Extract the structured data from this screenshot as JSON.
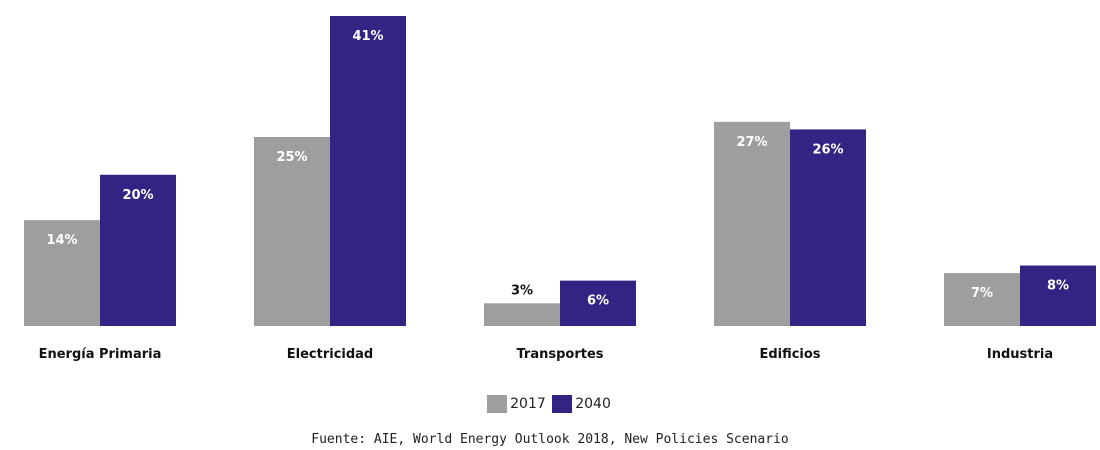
{
  "chart_data": {
    "type": "bar",
    "categories": [
      "Energía Primaria",
      "Electricidad",
      "Transportes",
      "Edificios",
      "Industria"
    ],
    "series": [
      {
        "name": "2017",
        "color": "#9e9e9e",
        "values": [
          14,
          25,
          3,
          27,
          7
        ]
      },
      {
        "name": "2040",
        "color": "#312483",
        "values": [
          20,
          41,
          6,
          26,
          8
        ]
      }
    ],
    "value_suffix": "%",
    "ylim": [
      0,
      41
    ],
    "grid": false,
    "legend_position": "bottom-center"
  },
  "legend": {
    "items": [
      "2017",
      "2040"
    ]
  },
  "source": "Fuente: AIE, World Energy Outlook 2018, New Policies Scenario"
}
